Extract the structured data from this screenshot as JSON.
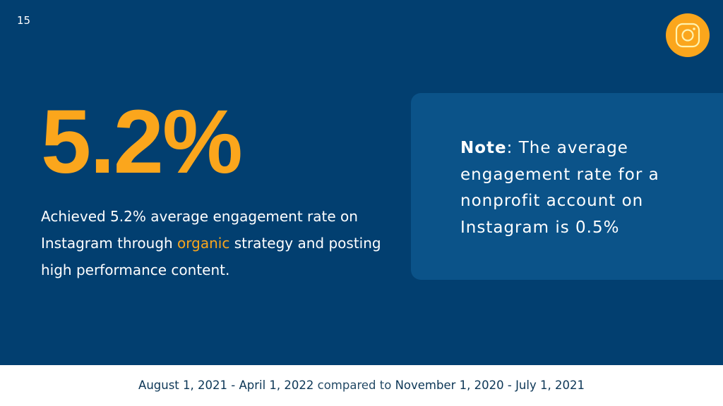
{
  "slide_number": "15",
  "icon": "instagram-icon",
  "headline": "5.2%",
  "description": {
    "before": "Achieved 5.2% average engagement rate on Instagram through ",
    "highlight": "organic",
    "after": " strategy and posting high performance content."
  },
  "note": {
    "label": "Note",
    "text": ": The average engagement rate for a nonprofit account on Instagram is 0.5%"
  },
  "footer": {
    "range1": "August 1, 2021 - April 1, 2022",
    "connector": " compared to ",
    "range2": "November 1, 2020 - July 1, 2021"
  },
  "colors": {
    "background": "#023f70",
    "accent": "#fba61c",
    "card": "#0b5389"
  }
}
